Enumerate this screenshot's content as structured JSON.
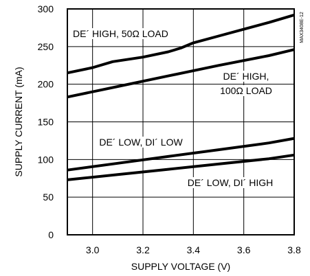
{
  "chart_data": {
    "type": "line",
    "title": "",
    "xlabel": "SUPPLY VOLTAGE (V)",
    "ylabel": "SUPPLY CURRENT (mA)",
    "xlim": [
      2.9,
      3.8
    ],
    "ylim": [
      0,
      300
    ],
    "xticks": [
      3.0,
      3.2,
      3.4,
      3.6,
      3.8
    ],
    "xtick_labels": [
      "3.0",
      "3.2",
      "3.4",
      "3.6",
      "3.8"
    ],
    "yticks": [
      0,
      50,
      100,
      150,
      200,
      250,
      300
    ],
    "ytick_labels": [
      "0",
      "50",
      "100",
      "150",
      "200",
      "250",
      "300"
    ],
    "grid": true,
    "legend": "none (series labeled directly on plot)",
    "annotation": "MAX3408E-12",
    "series": [
      {
        "name": "DE´ HIGH, 50Ω LOAD",
        "x": [
          2.9,
          3.0,
          3.08,
          3.2,
          3.3,
          3.35,
          3.4,
          3.5,
          3.6,
          3.7,
          3.8
        ],
        "y": [
          215,
          222,
          230,
          236,
          243,
          248,
          255,
          264,
          273,
          282,
          292
        ],
        "label_lines": [
          "DE´ HIGH, 50Ω LOAD"
        ]
      },
      {
        "name": "DE´ HIGH, 100Ω LOAD",
        "x": [
          2.9,
          3.1,
          3.3,
          3.5,
          3.7,
          3.8
        ],
        "y": [
          183,
          197,
          211,
          225,
          238,
          246
        ],
        "label_lines": [
          "DE´ HIGH,",
          "100Ω LOAD"
        ]
      },
      {
        "name": "DE´ LOW, DI´ LOW",
        "x": [
          2.9,
          3.1,
          3.3,
          3.5,
          3.7,
          3.8
        ],
        "y": [
          86,
          95,
          104,
          113,
          122,
          128
        ],
        "label_lines": [
          "DE´ LOW, DI´ LOW"
        ]
      },
      {
        "name": "DE´ LOW, DI´ HIGH",
        "x": [
          2.9,
          3.1,
          3.3,
          3.5,
          3.7,
          3.8
        ],
        "y": [
          73,
          80,
          87,
          94,
          101,
          106
        ],
        "label_lines": [
          "DE´ LOW, DI´ HIGH"
        ]
      }
    ]
  }
}
